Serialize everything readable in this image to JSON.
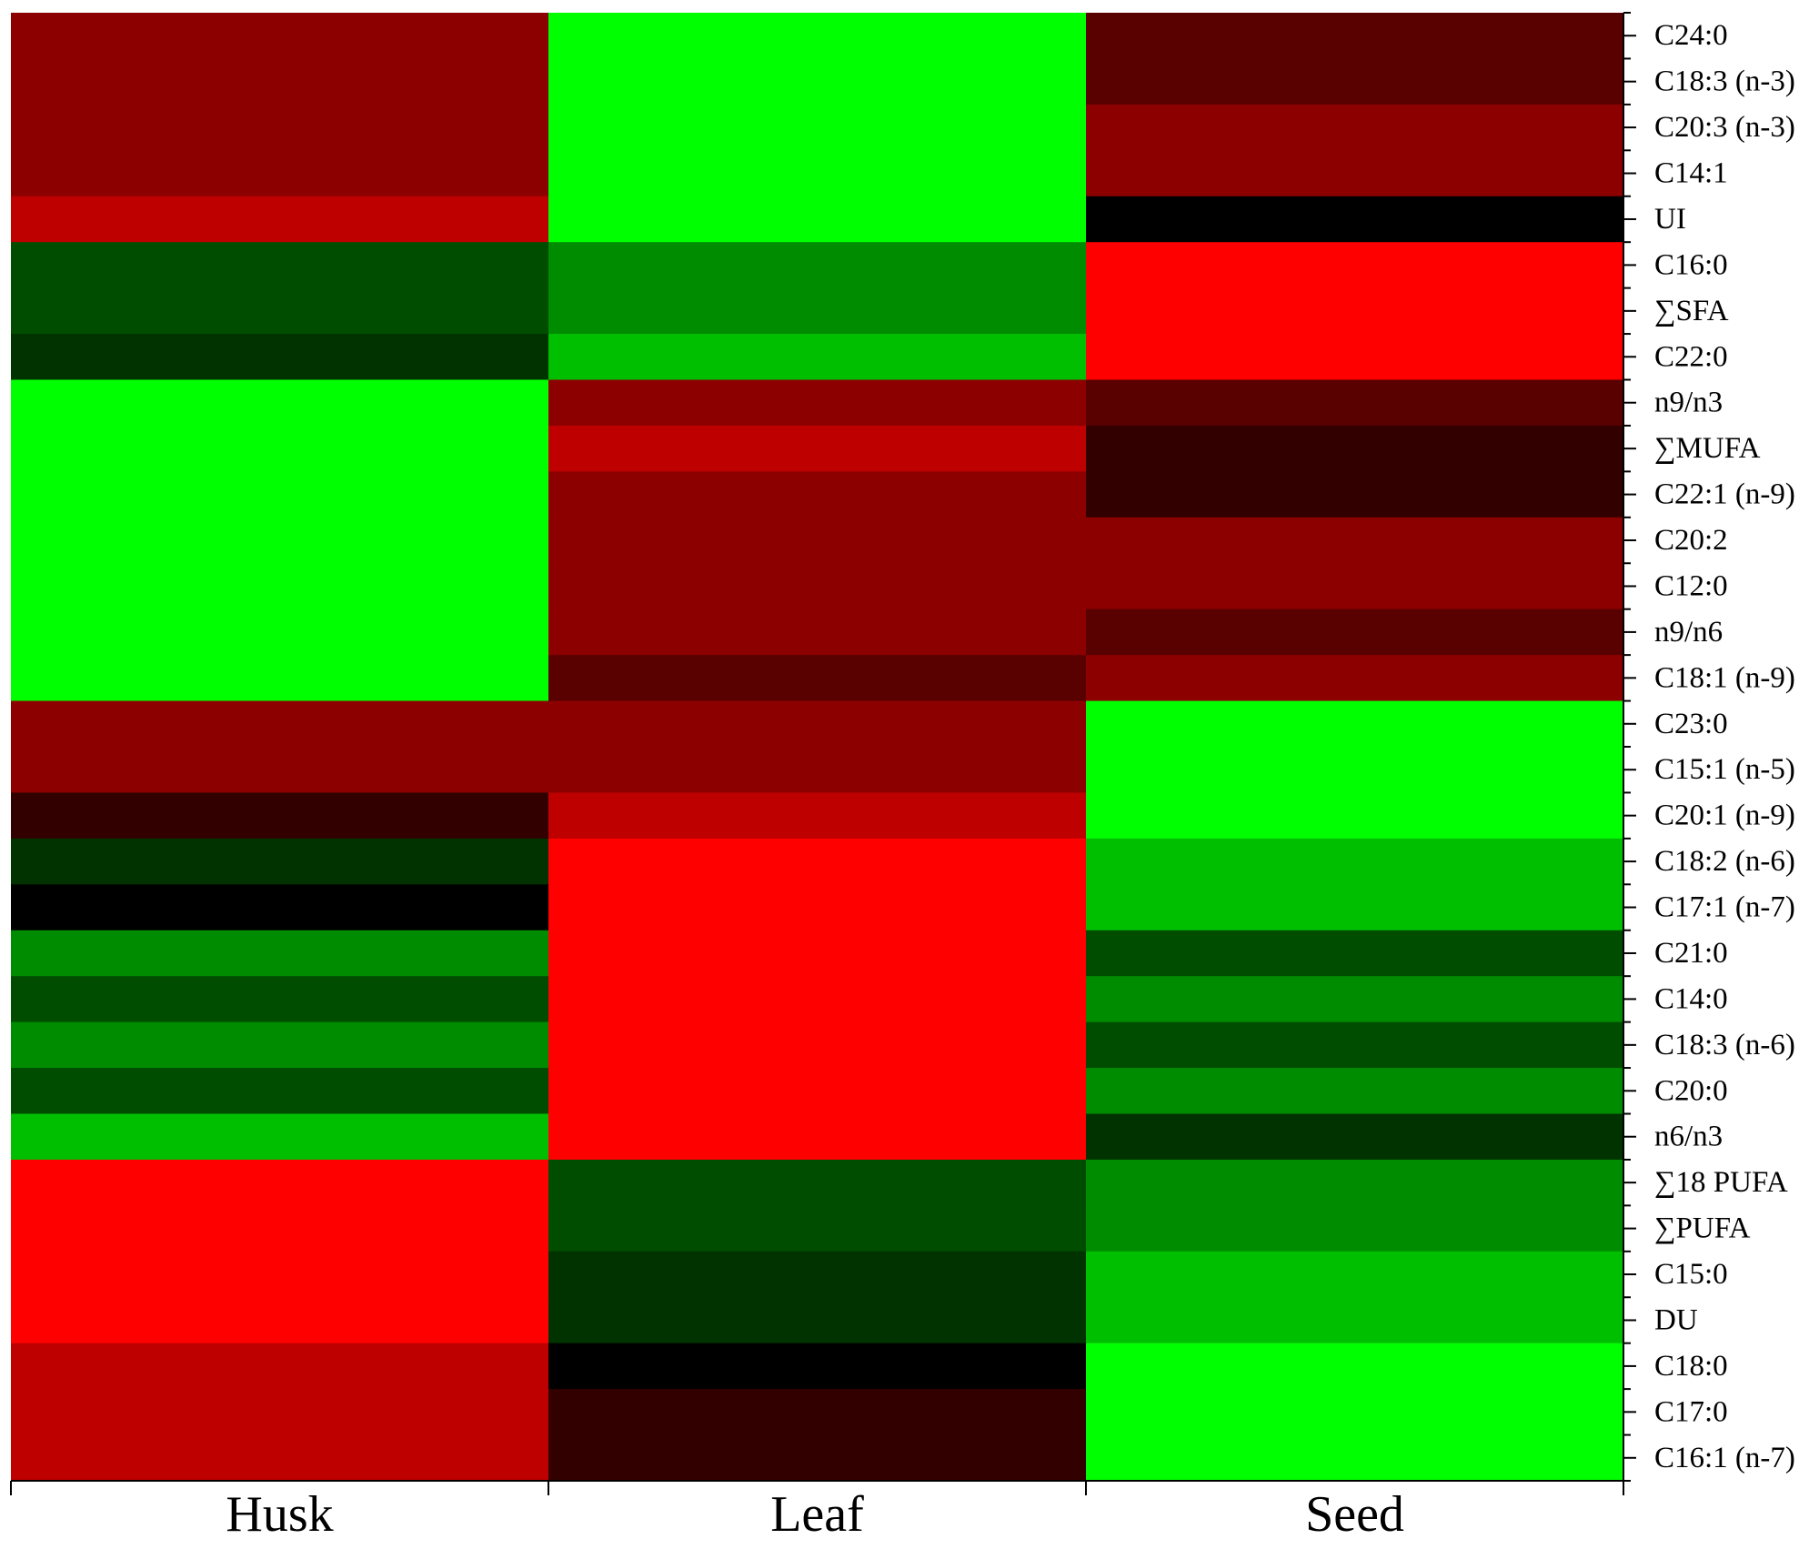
{
  "chart_data": {
    "type": "heatmap",
    "title": "",
    "xlabel": "",
    "ylabel": "",
    "columns": [
      "Husk",
      "Leaf",
      "Seed"
    ],
    "rows": [
      "C24:0",
      "C18:3 (n-3)",
      "C20:3 (n-3)",
      "C14:1",
      "UI",
      "C16:0",
      "∑SFA",
      "C22:0",
      "n9/n3",
      "∑MUFA",
      "C22:1 (n-9)",
      "C20:2",
      "C12:0",
      "n9/n6",
      "C18:1 (n-9)",
      "C23:0",
      "C15:1 (n-5)",
      "C20:1 (n-9)",
      "C18:2 (n-6)",
      "C17:1 (n-7)",
      "C21:0",
      "C14:0",
      "C18:3 (n-6)",
      "C20:0",
      "n6/n3",
      "∑18 PUFA",
      "∑PUFA",
      "C15:0",
      "DU",
      "C18:0",
      "C17:0",
      "C16:1 (n-7)"
    ],
    "values": [
      [
        0.55,
        -1.0,
        0.35
      ],
      [
        0.55,
        -1.0,
        0.35
      ],
      [
        0.55,
        -1.0,
        0.55
      ],
      [
        0.55,
        -1.0,
        0.55
      ],
      [
        0.75,
        -1.0,
        0.0
      ],
      [
        -0.3,
        -0.55,
        1.0
      ],
      [
        -0.3,
        -0.55,
        1.0
      ],
      [
        -0.2,
        -0.75,
        1.0
      ],
      [
        -1.0,
        0.55,
        0.35
      ],
      [
        -1.0,
        0.75,
        0.2
      ],
      [
        -1.0,
        0.55,
        0.2
      ],
      [
        -1.0,
        0.55,
        0.55
      ],
      [
        -1.0,
        0.55,
        0.55
      ],
      [
        -1.0,
        0.55,
        0.35
      ],
      [
        -1.0,
        0.35,
        0.55
      ],
      [
        0.55,
        0.55,
        -1.0
      ],
      [
        0.55,
        0.55,
        -1.0
      ],
      [
        0.2,
        0.75,
        -1.0
      ],
      [
        -0.2,
        1.0,
        -0.75
      ],
      [
        0.0,
        1.0,
        -0.75
      ],
      [
        -0.55,
        1.0,
        -0.3
      ],
      [
        -0.3,
        1.0,
        -0.55
      ],
      [
        -0.55,
        1.0,
        -0.3
      ],
      [
        -0.3,
        1.0,
        -0.55
      ],
      [
        -0.75,
        1.0,
        -0.2
      ],
      [
        1.0,
        -0.3,
        -0.55
      ],
      [
        1.0,
        -0.3,
        -0.55
      ],
      [
        1.0,
        -0.2,
        -0.75
      ],
      [
        1.0,
        -0.2,
        -0.75
      ],
      [
        0.75,
        0.0,
        -1.0
      ],
      [
        0.75,
        0.2,
        -1.0
      ],
      [
        0.75,
        0.2,
        -1.0
      ]
    ],
    "colormap": {
      "low": "#00ff00",
      "mid": "#000000",
      "high": "#ff0000"
    },
    "vmin": -1,
    "vmax": 1,
    "grid": false,
    "legend": "none"
  }
}
